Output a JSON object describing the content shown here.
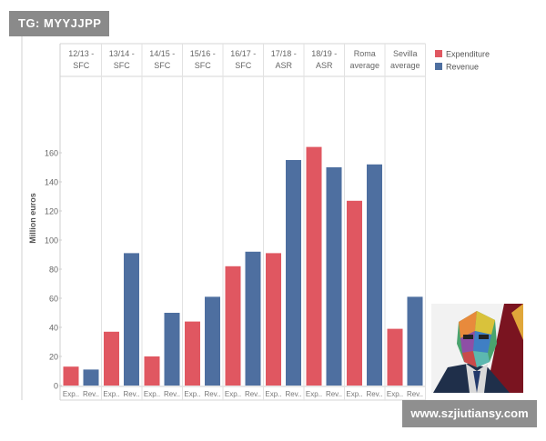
{
  "overlay": {
    "watermark": "TG: MYYJJPP",
    "url": "www.szjiutiansy.com"
  },
  "chart_data": {
    "type": "bar",
    "ylabel": "Million euros",
    "ylim": [
      0,
      170
    ],
    "yticks": [
      0,
      20,
      40,
      60,
      80,
      100,
      120,
      140,
      160
    ],
    "grid": false,
    "legend_position": "top-right",
    "groups": [
      [
        "12/13 -",
        "SFC"
      ],
      [
        "13/14 -",
        "SFC"
      ],
      [
        "14/15 -",
        "SFC"
      ],
      [
        "15/16 -",
        "SFC"
      ],
      [
        "16/17 -",
        "SFC"
      ],
      [
        "17/18 -",
        "ASR"
      ],
      [
        "18/19 -",
        "ASR"
      ],
      [
        "Roma",
        "average"
      ],
      [
        "Sevilla",
        "average"
      ]
    ],
    "bar_labels": [
      "Exp..",
      "Rev.."
    ],
    "series": [
      {
        "name": "Expenditure",
        "color": "#e05761",
        "values": [
          13,
          37,
          20,
          44,
          82,
          91,
          164,
          127,
          39
        ]
      },
      {
        "name": "Revenue",
        "color": "#4e6fa0",
        "values": [
          11,
          91,
          50,
          61,
          92,
          155,
          150,
          152,
          61
        ]
      }
    ]
  }
}
